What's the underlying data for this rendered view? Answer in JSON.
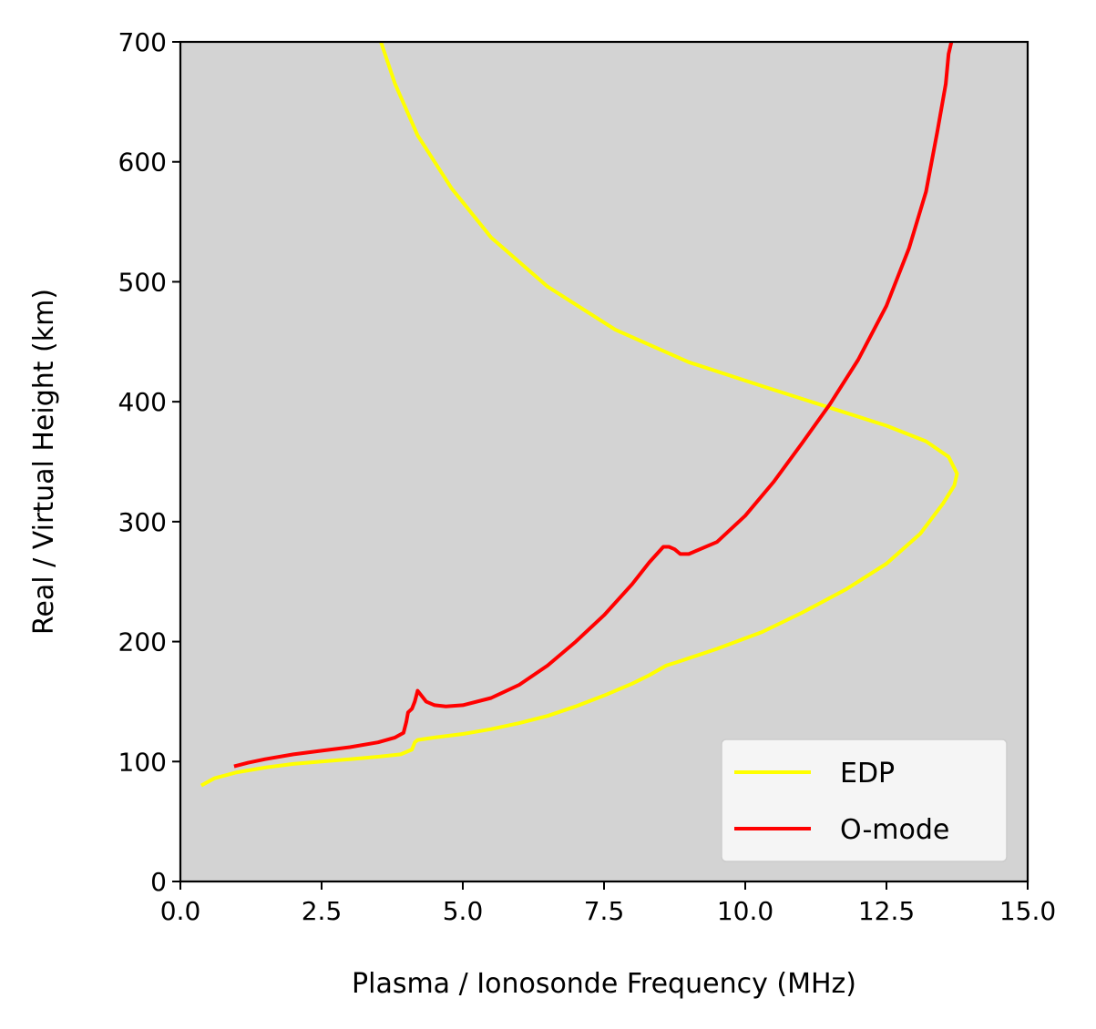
{
  "chart_data": {
    "type": "line",
    "title": "",
    "xlabel": "Plasma / Ionosonde Frequency (MHz)",
    "ylabel": "Real / Virtual Height (km)",
    "xlim": [
      0,
      15
    ],
    "ylim": [
      0,
      700
    ],
    "xticks": [
      "0.0",
      "2.5",
      "5.0",
      "7.5",
      "10.0",
      "12.5",
      "15.0"
    ],
    "xtick_values": [
      0,
      2.5,
      5,
      7.5,
      10,
      12.5,
      15
    ],
    "yticks": [
      "0",
      "100",
      "200",
      "300",
      "400",
      "500",
      "600",
      "700"
    ],
    "ytick_values": [
      0,
      100,
      200,
      300,
      400,
      500,
      600,
      700
    ],
    "grid": false,
    "plot_background": "#d3d3d3",
    "legend_position": "lower-right",
    "series": [
      {
        "name": "EDP",
        "color": "#ffff00",
        "x": [
          0.37,
          0.6,
          1.0,
          1.5,
          2.0,
          2.5,
          3.0,
          3.5,
          3.9,
          4.1,
          4.15,
          4.2,
          4.5,
          5.0,
          5.5,
          6.0,
          6.5,
          7.0,
          7.5,
          8.0,
          8.3,
          8.6,
          8.8,
          9.5,
          10.3,
          11.0,
          11.8,
          12.5,
          13.1,
          13.5,
          13.7,
          13.75,
          13.6,
          13.2,
          12.5,
          11.7,
          10.3,
          9.0,
          7.7,
          6.5,
          5.5,
          4.8,
          4.2,
          3.8,
          3.55
        ],
        "y": [
          80,
          86,
          91,
          95,
          98,
          100,
          102,
          104,
          106,
          110,
          116,
          118,
          120,
          123,
          127,
          132,
          138,
          146,
          155,
          165,
          172,
          180,
          183,
          194,
          208,
          224,
          244,
          265,
          290,
          315,
          330,
          340,
          354,
          367,
          380,
          392,
          413,
          433,
          460,
          496,
          537,
          578,
          622,
          665,
          700
        ]
      },
      {
        "name": "O-mode",
        "color": "#ff0000",
        "x": [
          0.95,
          1.2,
          1.5,
          2.0,
          2.5,
          3.0,
          3.5,
          3.8,
          3.95,
          4.0,
          4.03,
          4.1,
          4.15,
          4.2,
          4.25,
          4.35,
          4.5,
          4.7,
          5.0,
          5.5,
          6.0,
          6.5,
          7.0,
          7.5,
          8.0,
          8.3,
          8.55,
          8.65,
          8.75,
          8.85,
          9.0,
          9.5,
          10.0,
          10.5,
          11.0,
          11.5,
          12.0,
          12.5,
          12.9,
          13.2,
          13.4,
          13.55,
          13.6,
          13.65
        ],
        "y": [
          96,
          99,
          102,
          106,
          109,
          112,
          116,
          120,
          124,
          133,
          141,
          144,
          150,
          159,
          156,
          150,
          147,
          146,
          147,
          153,
          164,
          180,
          200,
          222,
          248,
          266,
          279,
          279,
          277,
          273,
          273,
          283,
          305,
          333,
          365,
          398,
          435,
          480,
          528,
          575,
          625,
          665,
          690,
          700
        ]
      }
    ]
  }
}
